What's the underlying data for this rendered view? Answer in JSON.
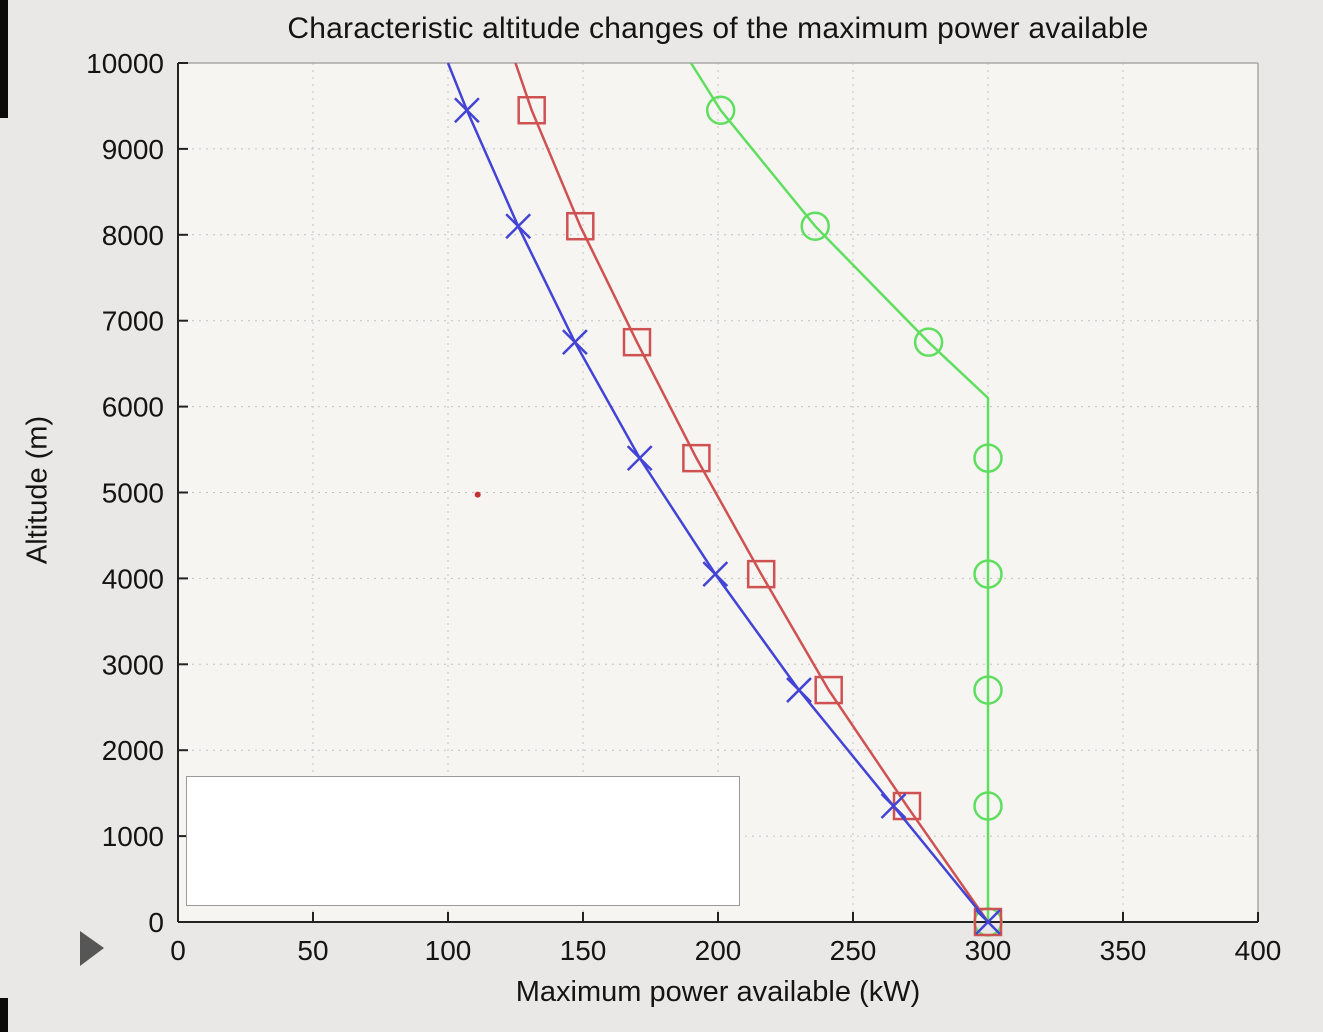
{
  "chart_data": {
    "type": "line",
    "title": "Characteristic altitude changes of the maximum power available",
    "xlabel": "Maximum power available (kW)",
    "ylabel": "Altitude (m)",
    "xlim": [
      0,
      400
    ],
    "ylim": [
      0,
      10000
    ],
    "xticks": [
      0,
      50,
      100,
      150,
      200,
      250,
      300,
      350,
      400
    ],
    "yticks": [
      0,
      1000,
      2000,
      3000,
      4000,
      5000,
      6000,
      7000,
      8000,
      9000,
      10000
    ],
    "grid": true,
    "plot_bg": "#f6f5f2",
    "grid_color": "#c1c1c1",
    "spine_dark": "#222222",
    "spine_light": "#a8a8a8",
    "tick_label_color": "#141414",
    "series": [
      {
        "name": "series-green-circle",
        "color": "#5fde5f",
        "marker": "circle",
        "line_points": [
          [
            300,
            0
          ],
          [
            300,
            6100
          ],
          [
            278,
            6750
          ],
          [
            236,
            8100
          ],
          [
            201,
            9450
          ],
          [
            190,
            10000
          ]
        ],
        "marker_points": [
          [
            300,
            0
          ],
          [
            300,
            1350
          ],
          [
            300,
            2700
          ],
          [
            300,
            4050
          ],
          [
            300,
            5400
          ],
          [
            278,
            6750
          ],
          [
            236,
            8100
          ],
          [
            201,
            9450
          ]
        ]
      },
      {
        "name": "series-red-square",
        "color": "#d05151",
        "marker": "square",
        "line_points": [
          [
            300,
            0
          ],
          [
            270,
            1350
          ],
          [
            241,
            2700
          ],
          [
            216,
            4050
          ],
          [
            192,
            5400
          ],
          [
            170,
            6750
          ],
          [
            149,
            8100
          ],
          [
            131,
            9450
          ],
          [
            125,
            10000
          ]
        ],
        "marker_points": [
          [
            300,
            0
          ],
          [
            270,
            1350
          ],
          [
            241,
            2700
          ],
          [
            216,
            4050
          ],
          [
            192,
            5400
          ],
          [
            170,
            6750
          ],
          [
            149,
            8100
          ],
          [
            131,
            9450
          ]
        ]
      },
      {
        "name": "series-blue-x",
        "color": "#4343d6",
        "marker": "x",
        "line_points": [
          [
            300,
            0
          ],
          [
            265,
            1350
          ],
          [
            230,
            2700
          ],
          [
            199,
            4050
          ],
          [
            171,
            5400
          ],
          [
            147,
            6750
          ],
          [
            126,
            8100
          ],
          [
            107,
            9450
          ],
          [
            100,
            10000
          ]
        ],
        "marker_points": [
          [
            300,
            0
          ],
          [
            265,
            1350
          ],
          [
            230,
            2700
          ],
          [
            199,
            4050
          ],
          [
            171,
            5400
          ],
          [
            147,
            6750
          ],
          [
            126,
            8100
          ],
          [
            107,
            9450
          ]
        ]
      }
    ],
    "stray_dot": {
      "x": 111,
      "y": 4975,
      "color": "#c23333"
    },
    "legend_box": {
      "text": ""
    }
  }
}
